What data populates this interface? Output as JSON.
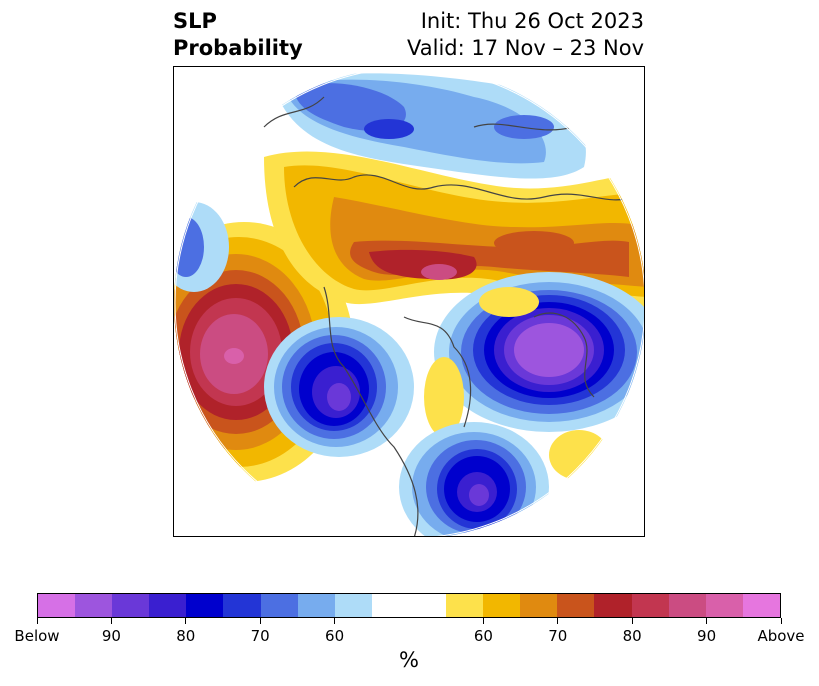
{
  "title": {
    "left_line1": "SLP",
    "left_line2": "Probability",
    "right_line1": "Init: Thu 26 Oct 2023",
    "right_line2": "Valid: 17 Nov – 23 Nov"
  },
  "colorbar": {
    "unit": "%",
    "tick_labels": [
      "Below",
      "90",
      "80",
      "70",
      "60",
      "60",
      "70",
      "80",
      "90",
      "Above"
    ],
    "colors": [
      "#d670e6",
      "#9d55de",
      "#6a38d8",
      "#3a1fd0",
      "#0000cd",
      "#2335d6",
      "#4c6fe2",
      "#77acee",
      "#aedcf8",
      "#ffffff",
      "#ffffff",
      "#fde14b",
      "#f2b700",
      "#e08a10",
      "#c9541c",
      "#b0222a",
      "#c23650",
      "#cb4c82",
      "#d960aa",
      "#e676df"
    ]
  },
  "map": {
    "variable": "SLP",
    "anomalies": [
      {
        "region": "north-pacific",
        "sign": "above",
        "peak_percent": 90
      },
      {
        "region": "northern-russia-arctic",
        "sign": "above",
        "peak_percent": 85
      },
      {
        "region": "western-canada",
        "sign": "below",
        "peak_percent": 90
      },
      {
        "region": "northern-europe-atlantic",
        "sign": "below",
        "peak_percent": 95
      },
      {
        "region": "western-atlantic",
        "sign": "below",
        "peak_percent": 90
      },
      {
        "region": "arctic-siberia",
        "sign": "below",
        "peak_percent": 70
      }
    ]
  }
}
